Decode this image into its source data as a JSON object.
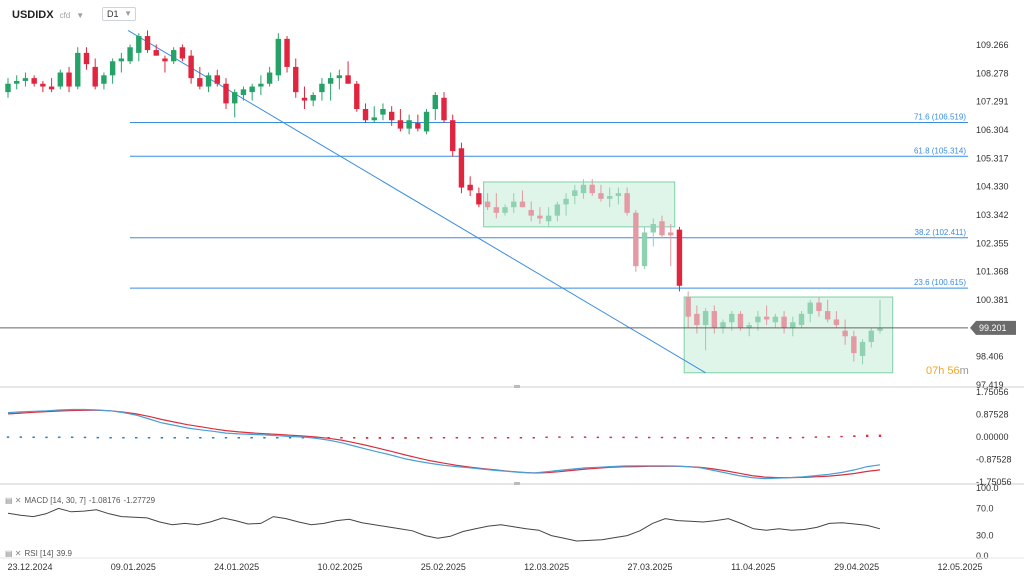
{
  "header": {
    "symbol": "USDIDX",
    "symbol_sub": "cfd",
    "timeframe": "D1"
  },
  "macd_legend": {
    "label": "MACD [14, 30, 7]",
    "value1": "-1.08176",
    "value2": "-1.27729"
  },
  "rsi_legend": {
    "label": "RSI [14]",
    "value": "39.9"
  },
  "countdown": {
    "h": "07h",
    "m": "56",
    "unit": "m"
  },
  "colors": {
    "up": "#26a269",
    "down": "#e0263f",
    "up_faded": "#8fd1b0",
    "down_faded": "#e39aa3",
    "fib": "#3a8de0",
    "zone_fill": "#dff5ea",
    "zone_border": "#7fd0a8",
    "macd_line": "#4a9fd8",
    "signal_line": "#d9303e",
    "rsi_line": "#444444",
    "price_line": "#666666",
    "price_tag": "#6b6b6b"
  },
  "chart_data": [
    {
      "type": "candlestick",
      "title": "USDIDX D1",
      "x_tick_labels": [
        "23.12.2024",
        "09.01.2025",
        "24.01.2025",
        "10.02.2025",
        "25.02.2025",
        "12.03.2025",
        "27.03.2025",
        "11.04.2025",
        "29.04.2025",
        "12.05.2025"
      ],
      "y_tick_labels": [
        "109.266",
        "108.278",
        "107.291",
        "106.304",
        "105.317",
        "104.330",
        "103.342",
        "102.355",
        "101.368",
        "100.381",
        "99.394",
        "98.406",
        "97.419"
      ],
      "ylim": [
        97.2,
        110.1
      ],
      "current_price": "99.201",
      "fib_levels": [
        {
          "label": "71.6 (106.519)",
          "value": 106.519
        },
        {
          "label": "61.8 (105.314)",
          "value": 105.314
        },
        {
          "label": "38.2 (102.411)",
          "value": 102.411
        },
        {
          "label": "23.6 (100.615)",
          "value": 100.615
        }
      ],
      "trendline": {
        "from": {
          "bar": 0,
          "value": 109.8
        },
        "to": {
          "bar": 80,
          "value": 97.6
        }
      },
      "zones": [
        {
          "from_bar": 55,
          "to_bar": 76,
          "top": 104.4,
          "bottom": 102.8
        },
        {
          "from_bar": 78,
          "to_bar": 101,
          "top": 100.3,
          "bottom": 97.6
        }
      ],
      "candles": [
        [
          107.6,
          108.1,
          107.4,
          107.9
        ],
        [
          107.9,
          108.2,
          107.7,
          108.0
        ],
        [
          108.0,
          108.3,
          107.8,
          108.1
        ],
        [
          108.1,
          108.2,
          107.8,
          107.9
        ],
        [
          107.9,
          108.0,
          107.6,
          107.8
        ],
        [
          107.8,
          108.1,
          107.6,
          107.7
        ],
        [
          107.8,
          108.4,
          107.7,
          108.3
        ],
        [
          108.3,
          108.5,
          107.6,
          107.8
        ],
        [
          107.8,
          109.2,
          107.7,
          109.0
        ],
        [
          109.0,
          109.2,
          108.4,
          108.6
        ],
        [
          108.5,
          108.8,
          107.7,
          107.8
        ],
        [
          107.9,
          108.3,
          107.7,
          108.2
        ],
        [
          108.2,
          108.8,
          107.9,
          108.7
        ],
        [
          108.7,
          109.0,
          108.3,
          108.8
        ],
        [
          108.7,
          109.3,
          108.6,
          109.2
        ],
        [
          109.0,
          109.7,
          108.7,
          109.6
        ],
        [
          109.6,
          109.8,
          109.0,
          109.1
        ],
        [
          109.1,
          109.3,
          108.9,
          108.9
        ],
        [
          108.8,
          108.9,
          108.3,
          108.7
        ],
        [
          108.7,
          109.2,
          108.6,
          109.1
        ],
        [
          109.2,
          109.3,
          108.7,
          108.8
        ],
        [
          108.9,
          109.1,
          107.9,
          108.1
        ],
        [
          108.1,
          108.5,
          107.7,
          107.8
        ],
        [
          107.8,
          108.3,
          107.6,
          108.2
        ],
        [
          108.2,
          108.4,
          107.8,
          107.9
        ],
        [
          107.9,
          108.1,
          107.0,
          107.2
        ],
        [
          107.2,
          107.7,
          106.7,
          107.6
        ],
        [
          107.5,
          107.8,
          107.3,
          107.7
        ],
        [
          107.6,
          107.9,
          107.3,
          107.8
        ],
        [
          107.8,
          108.2,
          107.5,
          107.9
        ],
        [
          107.9,
          108.5,
          107.8,
          108.3
        ],
        [
          108.2,
          109.7,
          108.0,
          109.5
        ],
        [
          109.5,
          109.6,
          108.3,
          108.5
        ],
        [
          108.5,
          108.8,
          107.4,
          107.6
        ],
        [
          107.4,
          107.8,
          107.0,
          107.3
        ],
        [
          107.3,
          107.6,
          107.1,
          107.5
        ],
        [
          107.6,
          108.1,
          107.3,
          107.9
        ],
        [
          107.9,
          108.3,
          107.3,
          108.1
        ],
        [
          108.1,
          108.4,
          107.7,
          108.2
        ],
        [
          108.2,
          108.7,
          107.9,
          107.9
        ],
        [
          107.9,
          108.0,
          106.9,
          107.0
        ],
        [
          107.0,
          107.2,
          106.5,
          106.6
        ],
        [
          106.6,
          107.1,
          106.5,
          106.7
        ],
        [
          106.8,
          107.2,
          106.6,
          107.0
        ],
        [
          106.9,
          107.1,
          106.4,
          106.6
        ],
        [
          106.6,
          107.0,
          106.2,
          106.3
        ],
        [
          106.3,
          106.8,
          106.1,
          106.6
        ],
        [
          106.5,
          106.8,
          106.2,
          106.3
        ],
        [
          106.2,
          107.0,
          106.1,
          106.9
        ],
        [
          107.0,
          107.6,
          106.6,
          107.5
        ],
        [
          107.4,
          107.6,
          106.5,
          106.6
        ],
        [
          106.6,
          106.8,
          105.3,
          105.5
        ],
        [
          105.6,
          105.8,
          104.0,
          104.2
        ],
        [
          104.3,
          104.6,
          103.9,
          104.1
        ],
        [
          104.0,
          104.2,
          103.5,
          103.6
        ],
        [
          103.7,
          104.0,
          103.4,
          103.5
        ],
        [
          103.5,
          104.0,
          103.1,
          103.3
        ],
        [
          103.3,
          103.6,
          103.2,
          103.5
        ],
        [
          103.5,
          104.0,
          103.3,
          103.7
        ],
        [
          103.7,
          104.1,
          103.5,
          103.5
        ],
        [
          103.4,
          103.7,
          103.0,
          103.2
        ],
        [
          103.2,
          103.5,
          102.9,
          103.1
        ],
        [
          103.0,
          103.5,
          102.8,
          103.2
        ],
        [
          103.2,
          103.7,
          103.0,
          103.6
        ],
        [
          103.6,
          104.0,
          103.2,
          103.8
        ],
        [
          103.9,
          104.3,
          103.6,
          104.1
        ],
        [
          104.0,
          104.5,
          103.8,
          104.3
        ],
        [
          104.3,
          104.5,
          103.9,
          104.0
        ],
        [
          104.0,
          104.3,
          103.7,
          103.8
        ],
        [
          103.8,
          104.2,
          103.5,
          103.9
        ],
        [
          103.9,
          104.2,
          103.6,
          104.0
        ],
        [
          104.0,
          104.2,
          103.2,
          103.3
        ],
        [
          103.3,
          103.4,
          101.2,
          101.4
        ],
        [
          101.4,
          102.8,
          101.3,
          102.6
        ],
        [
          102.6,
          103.1,
          102.1,
          102.9
        ],
        [
          103.0,
          103.2,
          102.4,
          102.5
        ],
        [
          102.6,
          102.9,
          101.4,
          102.5
        ],
        [
          102.7,
          102.8,
          100.5,
          100.7
        ],
        [
          100.3,
          100.5,
          99.2,
          99.6
        ],
        [
          99.7,
          100.0,
          99.0,
          99.3
        ],
        [
          99.3,
          99.9,
          98.4,
          99.8
        ],
        [
          99.8,
          100.0,
          99.0,
          99.2
        ],
        [
          99.2,
          99.5,
          99.0,
          99.4
        ],
        [
          99.4,
          99.8,
          99.1,
          99.7
        ],
        [
          99.7,
          99.8,
          99.1,
          99.2
        ],
        [
          99.2,
          99.4,
          98.9,
          99.3
        ],
        [
          99.4,
          99.8,
          99.1,
          99.6
        ],
        [
          99.6,
          100.0,
          99.3,
          99.5
        ],
        [
          99.4,
          99.7,
          99.2,
          99.6
        ],
        [
          99.6,
          99.8,
          99.0,
          99.2
        ],
        [
          99.2,
          99.6,
          98.9,
          99.4
        ],
        [
          99.3,
          99.8,
          99.2,
          99.7
        ],
        [
          99.7,
          100.2,
          99.4,
          100.1
        ],
        [
          100.1,
          100.3,
          99.6,
          99.8
        ],
        [
          99.8,
          100.2,
          99.4,
          99.5
        ],
        [
          99.5,
          99.8,
          99.2,
          99.3
        ],
        [
          99.1,
          99.5,
          98.6,
          98.9
        ],
        [
          98.9,
          99.1,
          98.0,
          98.3
        ],
        [
          98.2,
          98.8,
          97.9,
          98.7
        ],
        [
          98.7,
          99.2,
          98.5,
          99.1
        ],
        [
          99.1,
          100.2,
          99.0,
          99.2
        ]
      ]
    },
    {
      "type": "line",
      "title": "MACD [14, 30, 7]",
      "y_tick_labels": [
        "1.75056",
        "0.87528",
        "0.00000",
        "-0.87528",
        "-1.75056"
      ],
      "ylim": [
        -1.75056,
        1.75056
      ],
      "series": [
        {
          "name": "MACD",
          "values": [
            0.95,
            0.98,
            1.0,
            1.02,
            1.05,
            1.07,
            1.07,
            1.05,
            1.02,
            0.95,
            0.85,
            0.7,
            0.55,
            0.45,
            0.35,
            0.28,
            0.22,
            0.15,
            0.12,
            0.1,
            0.08,
            0.05,
            0.02,
            0.0,
            -0.05,
            -0.12,
            -0.22,
            -0.35,
            -0.48,
            -0.6,
            -0.72,
            -0.85,
            -0.95,
            -1.03,
            -1.1,
            -1.15,
            -1.2,
            -1.25,
            -1.3,
            -1.34,
            -1.38,
            -1.4,
            -1.35,
            -1.3,
            -1.25,
            -1.2,
            -1.18,
            -1.15,
            -1.13,
            -1.12,
            -1.12,
            -1.12,
            -1.13,
            -1.15,
            -1.2,
            -1.3,
            -1.4,
            -1.5,
            -1.58,
            -1.62,
            -1.6,
            -1.58,
            -1.55,
            -1.5,
            -1.45,
            -1.38,
            -1.28,
            -1.15,
            -1.08
          ]
        },
        {
          "name": "Signal",
          "values": [
            0.9,
            0.93,
            0.96,
            0.99,
            1.01,
            1.03,
            1.04,
            1.04,
            1.02,
            0.97,
            0.9,
            0.8,
            0.68,
            0.58,
            0.48,
            0.4,
            0.32,
            0.25,
            0.2,
            0.16,
            0.13,
            0.1,
            0.07,
            0.04,
            0.0,
            -0.05,
            -0.12,
            -0.22,
            -0.33,
            -0.45,
            -0.57,
            -0.7,
            -0.82,
            -0.93,
            -1.02,
            -1.1,
            -1.17,
            -1.23,
            -1.28,
            -1.33,
            -1.37,
            -1.4,
            -1.39,
            -1.35,
            -1.3,
            -1.25,
            -1.21,
            -1.18,
            -1.16,
            -1.15,
            -1.14,
            -1.14,
            -1.14,
            -1.15,
            -1.18,
            -1.24,
            -1.32,
            -1.41,
            -1.5,
            -1.56,
            -1.58,
            -1.58,
            -1.57,
            -1.55,
            -1.52,
            -1.48,
            -1.42,
            -1.34,
            -1.28
          ]
        }
      ]
    },
    {
      "type": "line",
      "title": "RSI [14]",
      "y_tick_labels": [
        "100.0",
        "70.0",
        "30.0",
        "0.0"
      ],
      "ylim": [
        0,
        100
      ],
      "series": [
        {
          "name": "RSI",
          "values": [
            63,
            60,
            58,
            62,
            70,
            65,
            66,
            68,
            62,
            58,
            57,
            56,
            50,
            46,
            48,
            46,
            50,
            56,
            52,
            47,
            48,
            58,
            55,
            50,
            46,
            48,
            52,
            54,
            49,
            46,
            43,
            40,
            37,
            30,
            26,
            29,
            36,
            40,
            44,
            46,
            43,
            40,
            38,
            30,
            26,
            22,
            23,
            24,
            27,
            30,
            37,
            48,
            55,
            52,
            51,
            50,
            52,
            55,
            48,
            40,
            38,
            40,
            38,
            39,
            42,
            48,
            49,
            47,
            45,
            40
          ]
        }
      ]
    }
  ]
}
